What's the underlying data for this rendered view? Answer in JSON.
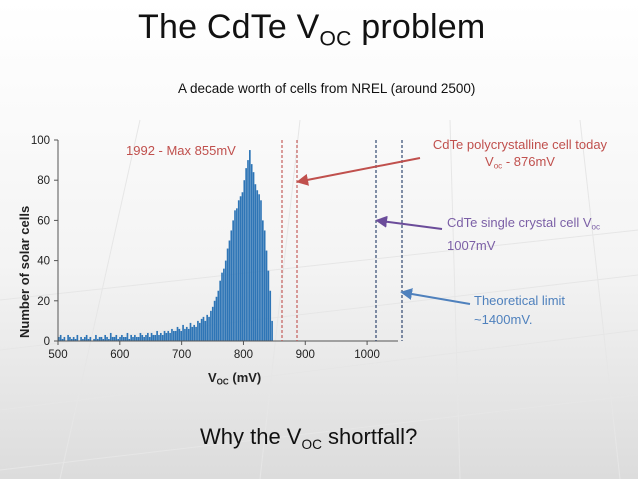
{
  "slide": {
    "title_main": "The CdTe V",
    "title_sub": "OC",
    "title_tail": " problem",
    "subtitle": "A decade worth of cells from NREL (around 2500)",
    "shortfall_main": "Why the V",
    "shortfall_sub": "OC",
    "shortfall_tail": " shortfall?"
  },
  "annotations": {
    "max_1992": "1992 - Max 855mV",
    "poly_line1": "CdTe polycrystalline cell today",
    "poly_line2_main": "V",
    "poly_line2_sub": "oc",
    "poly_line2_tail": " - 876mV",
    "single_line1_main": "CdTe single crystal cell V",
    "single_line1_sub": "oc",
    "single_line2": "1007mV",
    "theory_line1": "Theoretical limit",
    "theory_line2": "~1400mV."
  },
  "colors": {
    "bars": "#2e75b6",
    "red_lines": "#c0504d",
    "purple_arrow": "#6b4c9a",
    "blue_lines": "#4f81bd",
    "navy_lines": "#1f3864"
  },
  "chart_data": {
    "type": "bar",
    "title": "",
    "xlabel_main": "V",
    "xlabel_sub": "OC",
    "xlabel_tail": " (mV)",
    "ylabel": "Number of solar cells",
    "xlim": [
      500,
      1050
    ],
    "ylim": [
      0,
      100
    ],
    "x_ticks": [
      500,
      600,
      700,
      800,
      900,
      1000
    ],
    "y_ticks": [
      0,
      20,
      40,
      60,
      80,
      100
    ],
    "grid": false,
    "bin_width_mV": 3,
    "x_bin_start": [
      500,
      503,
      506,
      509,
      512,
      515,
      518,
      521,
      524,
      527,
      530,
      533,
      536,
      539,
      542,
      545,
      548,
      551,
      554,
      557,
      560,
      563,
      566,
      569,
      572,
      575,
      578,
      581,
      584,
      587,
      590,
      593,
      596,
      599,
      602,
      605,
      608,
      611,
      614,
      617,
      620,
      623,
      626,
      629,
      632,
      635,
      638,
      641,
      644,
      647,
      650,
      653,
      656,
      659,
      662,
      665,
      668,
      671,
      674,
      677,
      680,
      683,
      686,
      689,
      692,
      695,
      698,
      701,
      704,
      707,
      710,
      713,
      716,
      719,
      722,
      725,
      728,
      731,
      734,
      737,
      740,
      743,
      746,
      749,
      752,
      755,
      758,
      761,
      764,
      767,
      770,
      773,
      776,
      779,
      782,
      785,
      788,
      791,
      794,
      797,
      800,
      803,
      806,
      809,
      812,
      815,
      818,
      821,
      824,
      827,
      830,
      833,
      836,
      839,
      842,
      845
    ],
    "counts": [
      2,
      3,
      1,
      2,
      0,
      3,
      2,
      1,
      2,
      1,
      3,
      0,
      2,
      1,
      2,
      3,
      1,
      2,
      0,
      1,
      3,
      1,
      2,
      2,
      1,
      3,
      2,
      1,
      4,
      2,
      2,
      3,
      1,
      2,
      3,
      2,
      2,
      4,
      1,
      3,
      2,
      3,
      2,
      2,
      4,
      3,
      2,
      3,
      4,
      2,
      4,
      3,
      3,
      5,
      3,
      4,
      3,
      5,
      4,
      5,
      4,
      6,
      5,
      5,
      7,
      6,
      5,
      8,
      6,
      7,
      6,
      9,
      7,
      8,
      7,
      10,
      9,
      11,
      12,
      10,
      13,
      12,
      15,
      17,
      20,
      22,
      25,
      30,
      34,
      36,
      40,
      46,
      50,
      55,
      60,
      65,
      66,
      70,
      72,
      74,
      80,
      86,
      90,
      95,
      88,
      84,
      78,
      75,
      73,
      70,
      60,
      55,
      45,
      35,
      25,
      10
    ]
  }
}
